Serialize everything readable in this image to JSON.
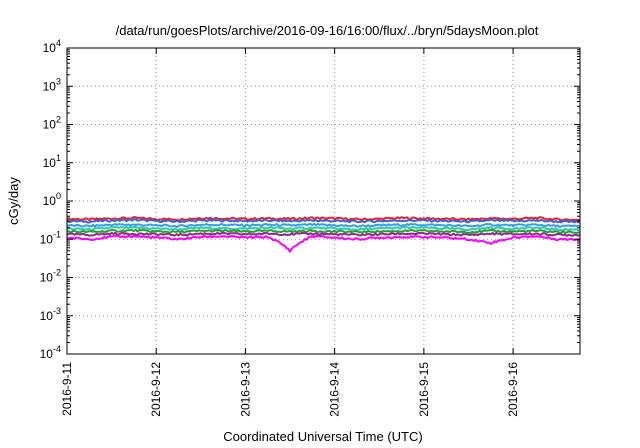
{
  "chart_data": {
    "type": "line",
    "title": "/data/run/goesPlots/archive/2016-09-16/16:00/flux/../bryn/5daysMoon.plot",
    "xlabel": "Coordinated Universal Time (UTC)",
    "ylabel": "cGy/day",
    "y_scale": "log",
    "ylim": [
      0.0001,
      10000
    ],
    "xlim": [
      "2016-09-11 00:00",
      "2016-09-16 18:00"
    ],
    "grid": true,
    "x_ticks": [
      "2016-9-11",
      "2016-9-12",
      "2016-9-13",
      "2016-9-14",
      "2016-9-15",
      "2016-9-16"
    ],
    "y_ticks": [
      {
        "base": "10",
        "exp": "-4"
      },
      {
        "base": "10",
        "exp": "-3"
      },
      {
        "base": "10",
        "exp": "-2"
      },
      {
        "base": "10",
        "exp": "-1"
      },
      {
        "base": "10",
        "exp": "0"
      },
      {
        "base": "10",
        "exp": "1"
      },
      {
        "base": "10",
        "exp": "2"
      },
      {
        "base": "10",
        "exp": "3"
      },
      {
        "base": "10",
        "exp": "4"
      }
    ],
    "x": [
      "2016-09-11 00:00",
      "2016-09-11 06:00",
      "2016-09-11 12:00",
      "2016-09-11 18:00",
      "2016-09-12 00:00",
      "2016-09-12 06:00",
      "2016-09-12 12:00",
      "2016-09-12 18:00",
      "2016-09-13 00:00",
      "2016-09-13 06:00",
      "2016-09-13 12:00",
      "2016-09-13 18:00",
      "2016-09-14 00:00",
      "2016-09-14 06:00",
      "2016-09-14 12:00",
      "2016-09-14 18:00",
      "2016-09-15 00:00",
      "2016-09-15 06:00",
      "2016-09-15 12:00",
      "2016-09-15 18:00",
      "2016-09-16 00:00",
      "2016-09-16 06:00",
      "2016-09-16 12:00",
      "2016-09-16 18:00"
    ],
    "series": [
      {
        "color": "#e8212a",
        "values": [
          0.34,
          0.33,
          0.35,
          0.36,
          0.34,
          0.33,
          0.36,
          0.35,
          0.34,
          0.35,
          0.34,
          0.36,
          0.35,
          0.33,
          0.34,
          0.36,
          0.35,
          0.34,
          0.33,
          0.35,
          0.34,
          0.36,
          0.33,
          0.32
        ]
      },
      {
        "color": "#3b5fd9",
        "values": [
          0.3,
          0.29,
          0.31,
          0.32,
          0.3,
          0.29,
          0.31,
          0.31,
          0.3,
          0.31,
          0.3,
          0.31,
          0.3,
          0.29,
          0.3,
          0.31,
          0.31,
          0.3,
          0.29,
          0.31,
          0.3,
          0.31,
          0.29,
          0.28
        ]
      },
      {
        "color": "#34a0e0",
        "values": [
          0.23,
          0.22,
          0.24,
          0.24,
          0.23,
          0.22,
          0.24,
          0.24,
          0.23,
          0.24,
          0.23,
          0.24,
          0.23,
          0.22,
          0.23,
          0.24,
          0.24,
          0.23,
          0.22,
          0.24,
          0.23,
          0.24,
          0.22,
          0.22
        ]
      },
      {
        "color": "#2ec9b4",
        "values": [
          0.19,
          0.18,
          0.2,
          0.2,
          0.19,
          0.18,
          0.2,
          0.19,
          0.19,
          0.2,
          0.19,
          0.2,
          0.19,
          0.18,
          0.19,
          0.2,
          0.2,
          0.19,
          0.18,
          0.2,
          0.19,
          0.2,
          0.18,
          0.18
        ]
      },
      {
        "color": "#2aa02a",
        "values": [
          0.16,
          0.155,
          0.165,
          0.17,
          0.16,
          0.155,
          0.165,
          0.165,
          0.16,
          0.165,
          0.16,
          0.165,
          0.16,
          0.155,
          0.16,
          0.165,
          0.165,
          0.16,
          0.155,
          0.165,
          0.16,
          0.165,
          0.155,
          0.15
        ]
      },
      {
        "color": "#8e2a8e",
        "values": [
          0.135,
          0.13,
          0.14,
          0.14,
          0.135,
          0.13,
          0.14,
          0.14,
          0.135,
          0.14,
          0.135,
          0.14,
          0.135,
          0.13,
          0.135,
          0.14,
          0.14,
          0.135,
          0.13,
          0.14,
          0.135,
          0.14,
          0.13,
          0.13
        ]
      },
      {
        "color": "#ff00ff",
        "values": [
          0.11,
          0.1,
          0.115,
          0.12,
          0.11,
          0.1,
          0.115,
          0.12,
          0.11,
          0.115,
          0.05,
          0.12,
          0.11,
          0.1,
          0.11,
          0.115,
          0.115,
          0.11,
          0.1,
          0.08,
          0.11,
          0.12,
          0.1,
          0.1
        ]
      }
    ]
  }
}
